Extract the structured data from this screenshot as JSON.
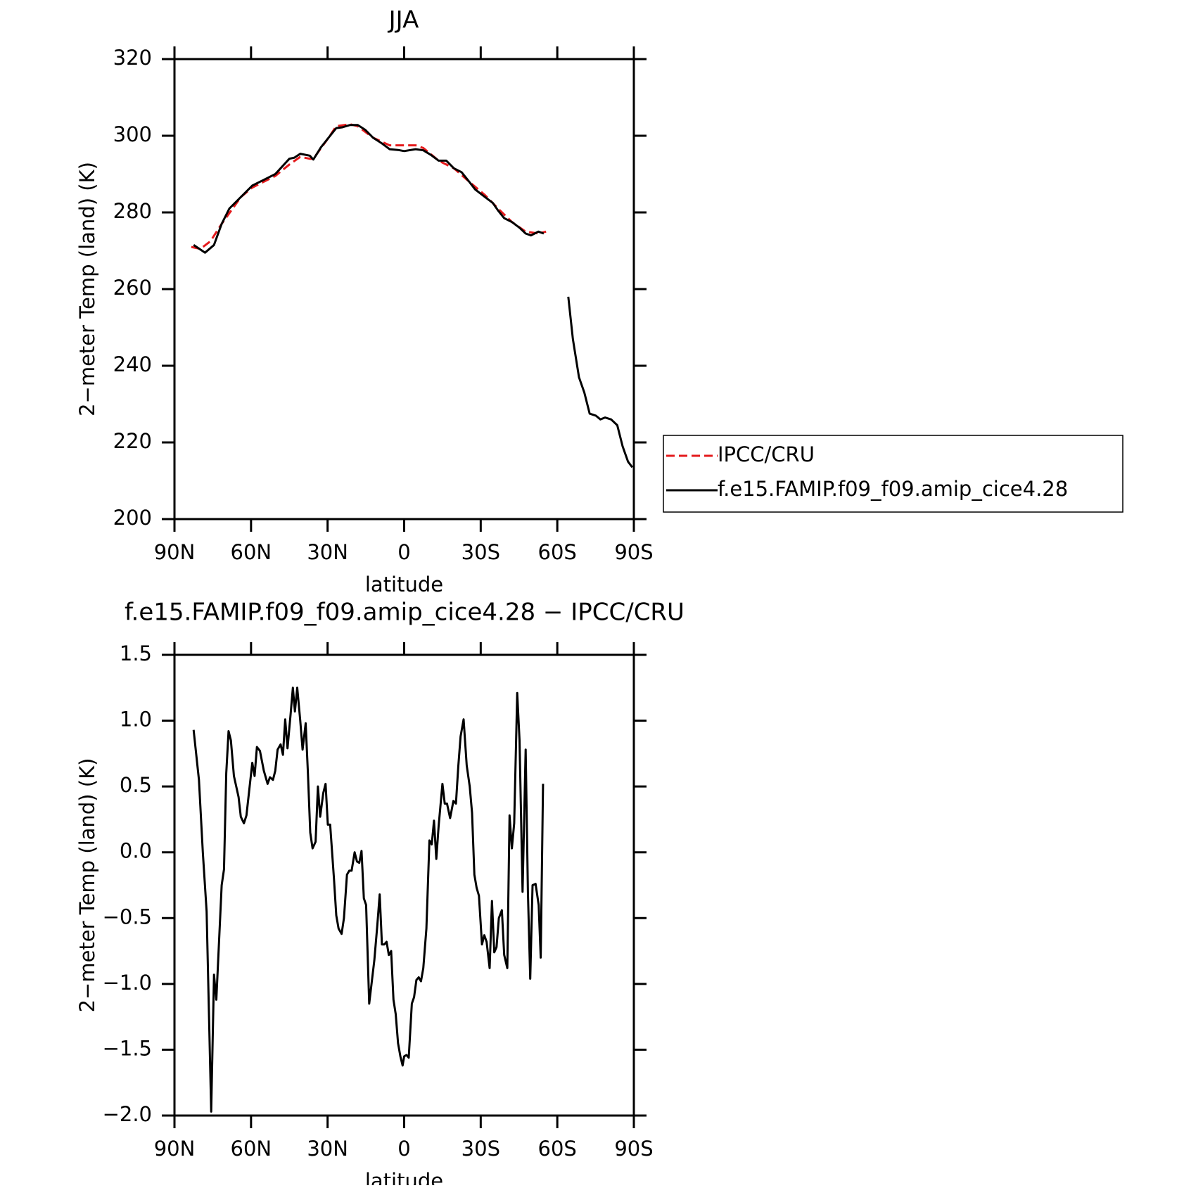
{
  "chart_data": [
    {
      "type": "line",
      "title": "JJA",
      "x_label": "latitude",
      "y_label": "2−meter Temp (land) (K)",
      "xlim": [
        90,
        -90
      ],
      "xticks": [
        {
          "value": 90,
          "label": "90N"
        },
        {
          "value": 60,
          "label": "60N"
        },
        {
          "value": 30,
          "label": "30N"
        },
        0,
        {
          "value": -30,
          "label": "30S"
        },
        {
          "value": -60,
          "label": "60S"
        },
        {
          "value": -90,
          "label": "90S"
        }
      ],
      "ylim": [
        200,
        320
      ],
      "yticks": [
        200,
        220,
        240,
        260,
        280,
        300,
        320
      ],
      "legend": "right",
      "series": [
        {
          "name": "IPCC/CRU",
          "color": "#e41a1c",
          "dashed": true,
          "x": [
            83.4,
            79.8,
            75.9,
            71.5,
            64,
            59.5,
            50.5,
            45,
            40.7,
            37,
            35.6,
            29.6,
            26.6,
            21.2,
            18.2,
            12.2,
            5.7,
            0,
            -4.5,
            -7.5,
            -13.5,
            -19.5,
            -25.5,
            -31.7,
            -36.8,
            -42.2,
            -47.6,
            -52.6,
            -55.6
          ],
          "values": [
            271,
            270.5,
            272.5,
            277,
            284,
            286.5,
            289.5,
            292.5,
            294.5,
            294,
            294,
            299.5,
            302.5,
            303,
            302.5,
            299.5,
            297.5,
            297.5,
            297.5,
            296.8,
            293.5,
            291.5,
            288,
            284.5,
            281,
            277.5,
            275,
            274.5,
            275
          ]
        },
        {
          "name": "f.e15.FAMIP.f09_f09.amip_cice4.28",
          "color": "#000000",
          "dashed": false,
          "x": [
            82.5,
            78,
            74.5,
            71.5,
            68.5,
            64,
            59.5,
            55,
            50.5,
            45,
            43,
            40.7,
            37,
            35.6,
            32.6,
            29.6,
            26.6,
            24.2,
            21.2,
            18.2,
            15.2,
            12.2,
            8.7,
            5.7,
            2.4,
            0,
            -4.5,
            -7.5,
            -10.5,
            -13.5,
            -16.5,
            -19.5,
            -22.5,
            -25.5,
            -27.8,
            -31.7,
            -34.7,
            -36.8,
            -39.2,
            -42.2,
            -45.2,
            -47.6,
            -49.7,
            -52.6,
            -54.7,
            -60,
            -64.3,
            -66.1,
            -68.5,
            -70.6,
            -72.7,
            -75.1,
            -76.9,
            -78.7,
            -81.1,
            -83.5,
            -85.6,
            -87.7,
            -89.4
          ],
          "values": [
            271.5,
            269.5,
            271.5,
            277,
            281,
            284,
            287,
            288.5,
            290,
            294,
            294.3,
            295.3,
            294.8,
            293.8,
            297,
            299.5,
            302,
            302.2,
            302.8,
            302.8,
            301.5,
            299.5,
            298,
            296.5,
            296.3,
            296,
            296.5,
            296.2,
            295,
            293.5,
            293.5,
            291.5,
            290.5,
            288,
            286,
            284,
            282.5,
            280.5,
            278.5,
            277.5,
            276,
            274.5,
            274,
            275,
            274.5,
            null,
            258,
            247,
            237,
            233,
            227.5,
            227,
            226,
            226.5,
            226,
            224.5,
            219,
            215,
            213.5
          ]
        }
      ]
    },
    {
      "type": "line",
      "title": "f.e15.FAMIP.f09_f09.amip_cice4.28 − IPCC/CRU",
      "x_label": "latitude",
      "y_label": "2−meter Temp (land) (K)",
      "xlim": [
        90,
        -90
      ],
      "xticks": [
        {
          "value": 90,
          "label": "90N"
        },
        {
          "value": 60,
          "label": "60N"
        },
        {
          "value": 30,
          "label": "30N"
        },
        0,
        {
          "value": -30,
          "label": "30S"
        },
        {
          "value": -60,
          "label": "60S"
        },
        {
          "value": -90,
          "label": "90S"
        }
      ],
      "ylim": [
        -2,
        1.5
      ],
      "yticks": [
        {
          "value": -2,
          "label": "−2.0"
        },
        {
          "value": -1.5,
          "label": "−1.5"
        },
        {
          "value": -1,
          "label": "−1.0"
        },
        {
          "value": -0.5,
          "label": "−0.5"
        },
        {
          "value": 0,
          "label": "0.0"
        },
        0.5,
        {
          "value": 1,
          "label": "1.0"
        },
        1.5
      ],
      "series": [
        {
          "color": "#000000",
          "dashed": false,
          "x": [
            82.5,
            80.4,
            78.9,
            77.4,
            75.6,
            74.5,
            73.6,
            71.5,
            70.6,
            69.7,
            68.8,
            67.9,
            66.7,
            64.9,
            64,
            62.8,
            61.8,
            59.5,
            58.6,
            57.7,
            56.5,
            55,
            53.5,
            52.6,
            51.4,
            50.5,
            49.6,
            48.4,
            47.5,
            46.6,
            45.7,
            44.5,
            43.6,
            42.8,
            41.9,
            40.7,
            39.8,
            38.6,
            37.7,
            36.8,
            35.9,
            34.7,
            33.8,
            32.9,
            31.7,
            30.8,
            29.9,
            29,
            27.5,
            26.6,
            25.7,
            24.5,
            23.6,
            22.4,
            21.5,
            20.6,
            19.4,
            18.5,
            17.6,
            16.7,
            15.8,
            14.9,
            13.7,
            12.8,
            11.7,
            10.5,
            9.6,
            8.7,
            7.8,
            6.9,
            6,
            5.1,
            4.2,
            3.3,
            2.4,
            1.5,
            0.6,
            0,
            -0.9,
            -1.8,
            -3,
            -3.9,
            -4.8,
            -5.7,
            -6.6,
            -7.5,
            -8.7,
            -9.9,
            -10.8,
            -11.7,
            -12.6,
            -13.5,
            -15,
            -15.9,
            -16.8,
            -18,
            -19.3,
            -20.3,
            -21.2,
            -22.1,
            -23.3,
            -24.5,
            -25.7,
            -26.6,
            -27.5,
            -28.4,
            -29.3,
            -30.5,
            -31.4,
            -32.3,
            -33.5,
            -34.4,
            -35.3,
            -36.2,
            -37.1,
            -38.3,
            -39.2,
            -40.4,
            -41.3,
            -42.2,
            -43.1,
            -44.3,
            -45.2,
            -46.4,
            -47.6,
            -48.5,
            -49.4,
            -50.3,
            -51.5,
            -52.7,
            -53.5,
            -54.4
          ],
          "values": [
            0.93,
            0.55,
            0,
            -0.45,
            -1.97,
            -0.93,
            -1.12,
            -0.25,
            -0.13,
            0.6,
            0.92,
            0.85,
            0.58,
            0.42,
            0.27,
            0.22,
            0.28,
            0.68,
            0.58,
            0.8,
            0.77,
            0.62,
            0.52,
            0.57,
            0.55,
            0.62,
            0.78,
            0.82,
            0.74,
            1.01,
            0.79,
            1.05,
            1.25,
            1.07,
            1.25,
            1,
            0.78,
            0.98,
            0.6,
            0.15,
            0.03,
            0.08,
            0.5,
            0.27,
            0.45,
            0.52,
            0.21,
            0.21,
            -0.2,
            -0.48,
            -0.58,
            -0.62,
            -0.5,
            -0.17,
            -0.14,
            -0.14,
            0,
            -0.07,
            -0.08,
            0.01,
            -0.35,
            -0.4,
            -1.15,
            -1,
            -0.82,
            -0.55,
            -0.32,
            -0.7,
            -0.7,
            -0.68,
            -0.78,
            -0.75,
            -1.12,
            -1.23,
            -1.45,
            -1.55,
            -1.62,
            -1.55,
            -1.54,
            -1.56,
            -1.15,
            -1.1,
            -0.97,
            -0.95,
            -0.98,
            -0.88,
            -0.58,
            0.09,
            0.06,
            0.24,
            -0.05,
            0.2,
            0.52,
            0.37,
            0.37,
            0.26,
            0.39,
            0.37,
            0.65,
            0.88,
            1.01,
            0.66,
            0.5,
            0.3,
            -0.17,
            -0.27,
            -0.33,
            -0.7,
            -0.63,
            -0.68,
            -0.88,
            -0.37,
            -0.76,
            -0.72,
            -0.5,
            -0.44,
            -0.78,
            -0.88,
            0.28,
            0.03,
            0.22,
            1.21,
            0.85,
            -0.3,
            0.78,
            -0.3,
            -0.96,
            -0.25,
            -0.24,
            -0.4,
            -0.8,
            0.52
          ]
        }
      ]
    }
  ]
}
